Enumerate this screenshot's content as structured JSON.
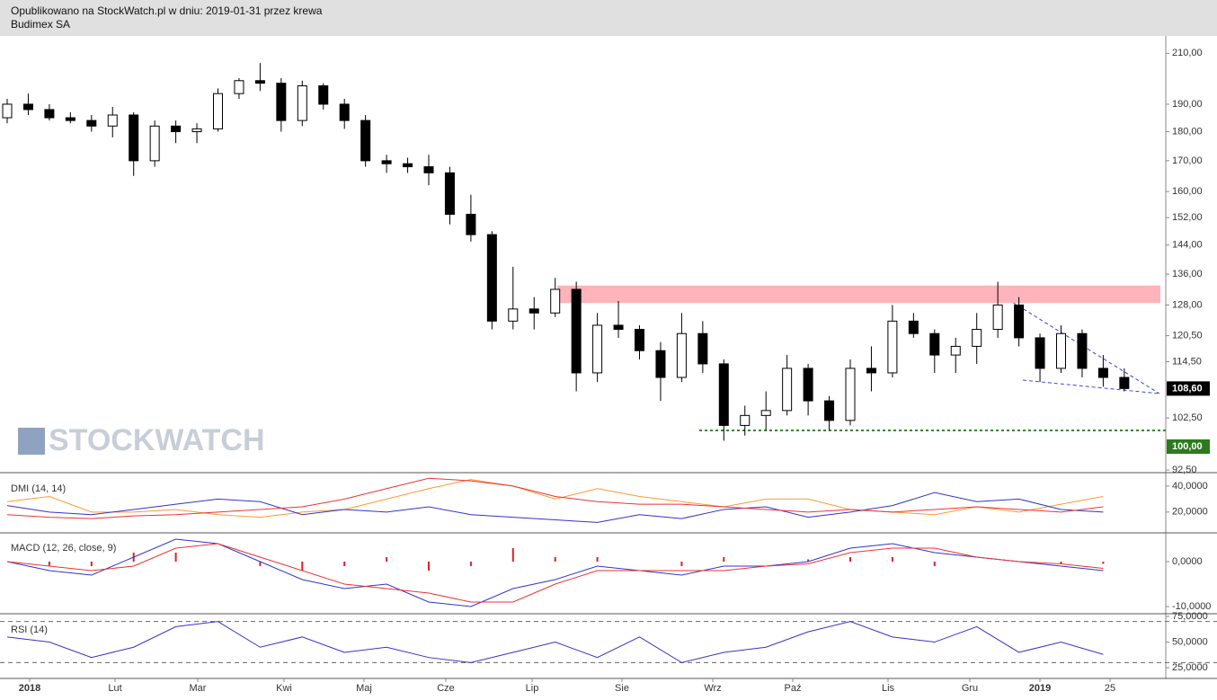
{
  "chart_data": {
    "type": "candlestick",
    "header": [
      "Opublikowano na StockWatch.pl w dniu: 2019-01-31 przez krewa",
      "Budimex SA"
    ],
    "watermark": "STOCKWATCH",
    "log_scale": true,
    "ylim": [
      92.2,
      217.3
    ],
    "yticks": [
      {
        "value": 210,
        "label": "210,00"
      },
      {
        "value": 190,
        "label": "190,00"
      },
      {
        "value": 180,
        "label": "180,00"
      },
      {
        "value": 170,
        "label": "170,00"
      },
      {
        "value": 160,
        "label": "160,00"
      },
      {
        "value": 152,
        "label": "152,00"
      },
      {
        "value": 144,
        "label": "144,00"
      },
      {
        "value": 136,
        "label": "136,00"
      },
      {
        "value": 128,
        "label": "128,00"
      },
      {
        "value": 120.5,
        "label": "120,50"
      },
      {
        "value": 114.5,
        "label": "114,50"
      },
      {
        "value": 102.5,
        "label": "102,50"
      },
      {
        "value": 92.5,
        "label": "92,50"
      }
    ],
    "last_price": {
      "value": 108.6,
      "label": "108,60"
    },
    "support": {
      "value": 100,
      "label": "100,00"
    },
    "resistance_zone": [
      128.5,
      133
    ],
    "x_labels": [
      "2018",
      "Lut",
      "Mar",
      "Kwi",
      "Maj",
      "Cze",
      "Lip",
      "Sie",
      "Wrz",
      "Paź",
      "Lis",
      "Gru",
      "2019",
      "25"
    ],
    "candles": [
      [
        185,
        192,
        183,
        190
      ],
      [
        190,
        194,
        186,
        188
      ],
      [
        188,
        190,
        184,
        185
      ],
      [
        185,
        187,
        183,
        184
      ],
      [
        184,
        186,
        180,
        182
      ],
      [
        182,
        189,
        178,
        186
      ],
      [
        186,
        187,
        165,
        170
      ],
      [
        170,
        184,
        168,
        182
      ],
      [
        182,
        184,
        176,
        180
      ],
      [
        180,
        183,
        176,
        181
      ],
      [
        181,
        196,
        180,
        194
      ],
      [
        194,
        200,
        192,
        199
      ],
      [
        199,
        206,
        195,
        198
      ],
      [
        198,
        200,
        180,
        184
      ],
      [
        184,
        199,
        182,
        197
      ],
      [
        197,
        198,
        188,
        190
      ],
      [
        190,
        192,
        181,
        184
      ],
      [
        184,
        186,
        168,
        170
      ],
      [
        170,
        172,
        166,
        169
      ],
      [
        169,
        171,
        166,
        168
      ],
      [
        168,
        172,
        162,
        166
      ],
      [
        166,
        168,
        150,
        153
      ],
      [
        153,
        159,
        145,
        147
      ],
      [
        147,
        148,
        122,
        124
      ],
      [
        124,
        138,
        122,
        127
      ],
      [
        127,
        130,
        122,
        126
      ],
      [
        126,
        135,
        125,
        132
      ],
      [
        132,
        134,
        108,
        112
      ],
      [
        112,
        126,
        110,
        123
      ],
      [
        123,
        129,
        120,
        122
      ],
      [
        122,
        123,
        115,
        117
      ],
      [
        117,
        119,
        106,
        111
      ],
      [
        111,
        126,
        110,
        121
      ],
      [
        121,
        124,
        112,
        114
      ],
      [
        114,
        115,
        98,
        101
      ],
      [
        101,
        105,
        99,
        103
      ],
      [
        103,
        108,
        100,
        104
      ],
      [
        104,
        116,
        103,
        113
      ],
      [
        113,
        114,
        103,
        106
      ],
      [
        106,
        107,
        100,
        102
      ],
      [
        102,
        115,
        101,
        113
      ],
      [
        113,
        118,
        108,
        112
      ],
      [
        112,
        128,
        111,
        124
      ],
      [
        124,
        126,
        120,
        121
      ],
      [
        121,
        122,
        112,
        116
      ],
      [
        116,
        120,
        112,
        118
      ],
      [
        118,
        126,
        114,
        122
      ],
      [
        122,
        134,
        120,
        128
      ],
      [
        128,
        130,
        118,
        120
      ],
      [
        120,
        121,
        110,
        113
      ],
      [
        113,
        123,
        112,
        121
      ],
      [
        121,
        122,
        111,
        113
      ],
      [
        113,
        116,
        109,
        111
      ],
      [
        111,
        113,
        108,
        108.6
      ]
    ],
    "dmi": {
      "label": "DMI (14, 14)",
      "ylim": [
        4,
        49.6
      ],
      "yticks": [
        {
          "value": 40,
          "label": "40,0000"
        },
        {
          "value": 20,
          "label": "20,0000"
        }
      ],
      "series": [
        {
          "color": "#ff9933",
          "values": [
            28,
            32,
            20,
            20,
            22,
            18,
            16,
            20,
            22,
            30,
            38,
            45,
            40,
            30,
            38,
            32,
            28,
            24,
            30,
            30,
            22,
            20,
            18,
            24,
            20,
            26,
            32
          ]
        },
        {
          "color": "#3333cc",
          "values": [
            25,
            20,
            18,
            22,
            26,
            30,
            28,
            18,
            22,
            20,
            24,
            18,
            16,
            14,
            12,
            18,
            15,
            22,
            24,
            16,
            20,
            25,
            35,
            28,
            30,
            22,
            20
          ]
        },
        {
          "color": "#ee3333",
          "values": [
            18,
            16,
            15,
            17,
            18,
            20,
            22,
            24,
            30,
            38,
            46,
            44,
            40,
            32,
            28,
            26,
            26,
            24,
            22,
            20,
            22,
            20,
            22,
            24,
            22,
            20,
            24
          ]
        }
      ]
    },
    "macd": {
      "label": "MACD (12, 26, close, 9)",
      "ylim": [
        -11.6,
        6.4
      ],
      "yticks": [
        {
          "value": 0,
          "label": "0,0000"
        },
        {
          "value": -10,
          "label": "-10,0000"
        }
      ],
      "histogram": {
        "color": "#dd2222",
        "values": [
          0,
          -1,
          -1,
          2,
          2,
          0,
          -1,
          -2,
          -1,
          1,
          -2,
          -1,
          3,
          1,
          1,
          0,
          -1,
          1,
          0,
          0.5,
          1,
          1,
          -1,
          0,
          0,
          -0.5,
          -0.5
        ]
      },
      "series": [
        {
          "color": "#3333cc",
          "values": [
            0,
            -2,
            -3,
            1,
            5,
            4,
            0,
            -4,
            -6,
            -5,
            -9,
            -10,
            -6,
            -4,
            -1,
            -2,
            -3,
            -1,
            -1,
            0,
            3,
            4,
            2,
            1,
            0,
            -1,
            -2
          ]
        },
        {
          "color": "#ee3333",
          "values": [
            0,
            -1,
            -2,
            -1,
            3,
            4,
            1,
            -2,
            -5,
            -6,
            -7,
            -9,
            -9,
            -5,
            -2,
            -2,
            -2,
            -2,
            -1,
            -0.5,
            2,
            3,
            3,
            1,
            0,
            -0.5,
            -1.5
          ]
        }
      ]
    },
    "rsi": {
      "label": "RSI (14)",
      "ylim": [
        14.6,
        77.6
      ],
      "yticks": [
        {
          "value": 75,
          "label": "75,0000"
        },
        {
          "value": 50,
          "label": "50,0000"
        },
        {
          "value": 25,
          "label": "25,0000"
        }
      ],
      "levels": [
        70,
        30
      ],
      "series": [
        {
          "color": "#3333cc",
          "values": [
            55,
            50,
            35,
            45,
            65,
            70,
            45,
            55,
            40,
            45,
            35,
            30,
            40,
            50,
            35,
            55,
            30,
            40,
            45,
            60,
            70,
            55,
            50,
            65,
            40,
            50,
            38
          ]
        }
      ]
    }
  }
}
